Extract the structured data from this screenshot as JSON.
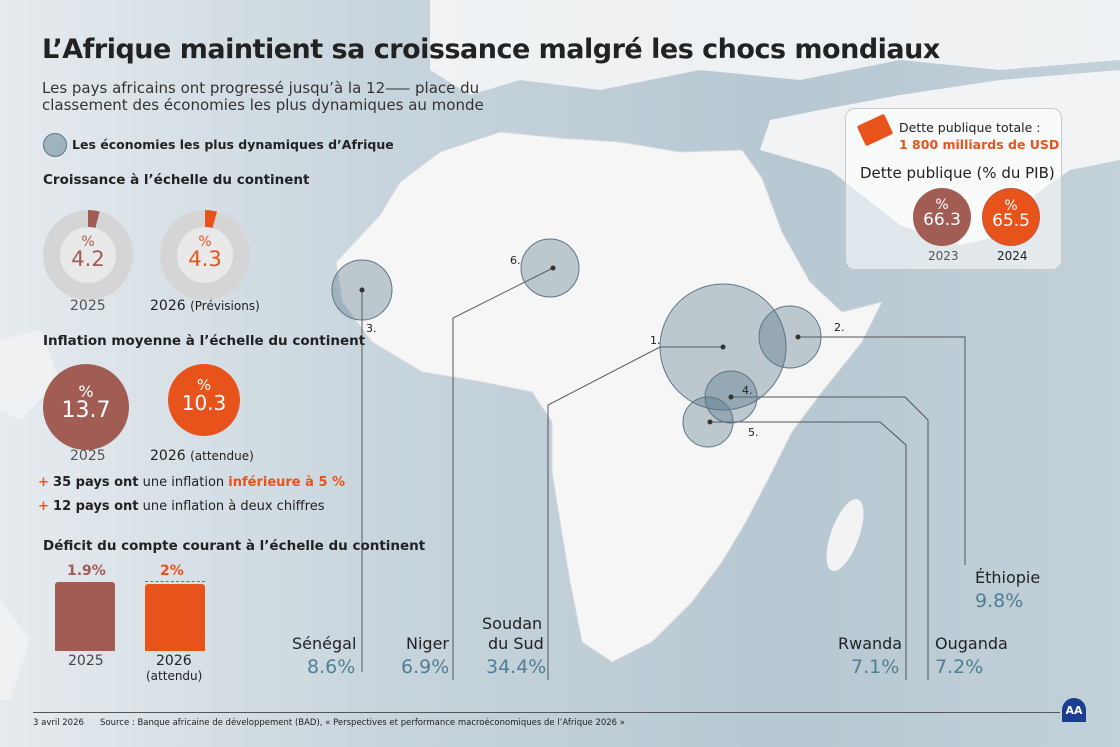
{
  "title": "L’Afrique maintient sa croissance malgré les chocs mondiaux",
  "subtitle": [
    "Les pays africains ont progressé jusqu’à la 12⸺ place du",
    "classement des économies les plus dynamiques au monde"
  ],
  "legend": "Les économies les plus dynamiques d’Afrique",
  "growth": {
    "heading": "Croissance à l’échelle du continent",
    "items": [
      {
        "pct": "%",
        "value": "4.2",
        "year": "2025",
        "note": "",
        "color": "#a15c54"
      },
      {
        "pct": "%",
        "value": "4.3",
        "year": "2026",
        "note": "(Prévisions)",
        "color": "#e8531c"
      }
    ]
  },
  "inflation": {
    "heading": "Inflation moyenne à l’échelle du continent",
    "items": [
      {
        "pct": "%",
        "value": "13.7",
        "year": "2025",
        "note": ""
      },
      {
        "pct": "%",
        "value": "10.3",
        "year": "2026",
        "note": "(attendue)"
      }
    ],
    "bullets": [
      {
        "bold": "35 pays ont",
        "text": " une inflation ",
        "highlight": "inférieure à 5 %"
      },
      {
        "bold": "12 pays ont",
        "text": " une inflation à deux chiffres",
        "highlight": ""
      }
    ]
  },
  "deficit": {
    "heading": "Déficit du compte courant à l’échelle du continent",
    "items": [
      {
        "value": "1.9%",
        "year": "2025",
        "note": ""
      },
      {
        "value": "2%",
        "year": "2026",
        "note": "(attendu)"
      }
    ]
  },
  "debt": {
    "total_label": "Dette publique totale :",
    "total_value": "1 800 milliards de USD",
    "heading": "Dette publique (% du PIB)",
    "items": [
      {
        "pct": "%",
        "value": "66.3",
        "year": "2023"
      },
      {
        "pct": "%",
        "value": "65.5",
        "year": "2024"
      }
    ]
  },
  "countries": [
    {
      "rank": "1.",
      "name": "Soudan du Sud",
      "line1": "Soudan",
      "line2": "du Sud",
      "value": "34.4%"
    },
    {
      "rank": "2.",
      "name": "Éthiopie",
      "value": "9.8%"
    },
    {
      "rank": "3.",
      "name": "Sénégal",
      "value": "8.6%"
    },
    {
      "rank": "4.",
      "name": "Ouganda",
      "value": "7.2%"
    },
    {
      "rank": "5.",
      "name": "Rwanda",
      "value": "7.1%"
    },
    {
      "rank": "6.",
      "name": "Niger",
      "value": "6.9%"
    }
  ],
  "colors": {
    "brown": "#a15c54",
    "orange": "#e8531c",
    "teal": "#4f7f94"
  },
  "footer": {
    "date": "3 avril 2026",
    "source": "Source : Banque africaine de développement (BAD), « Perspectives et performance macroéconomiques de l’Afrique 2026 »",
    "logo": "AA"
  }
}
